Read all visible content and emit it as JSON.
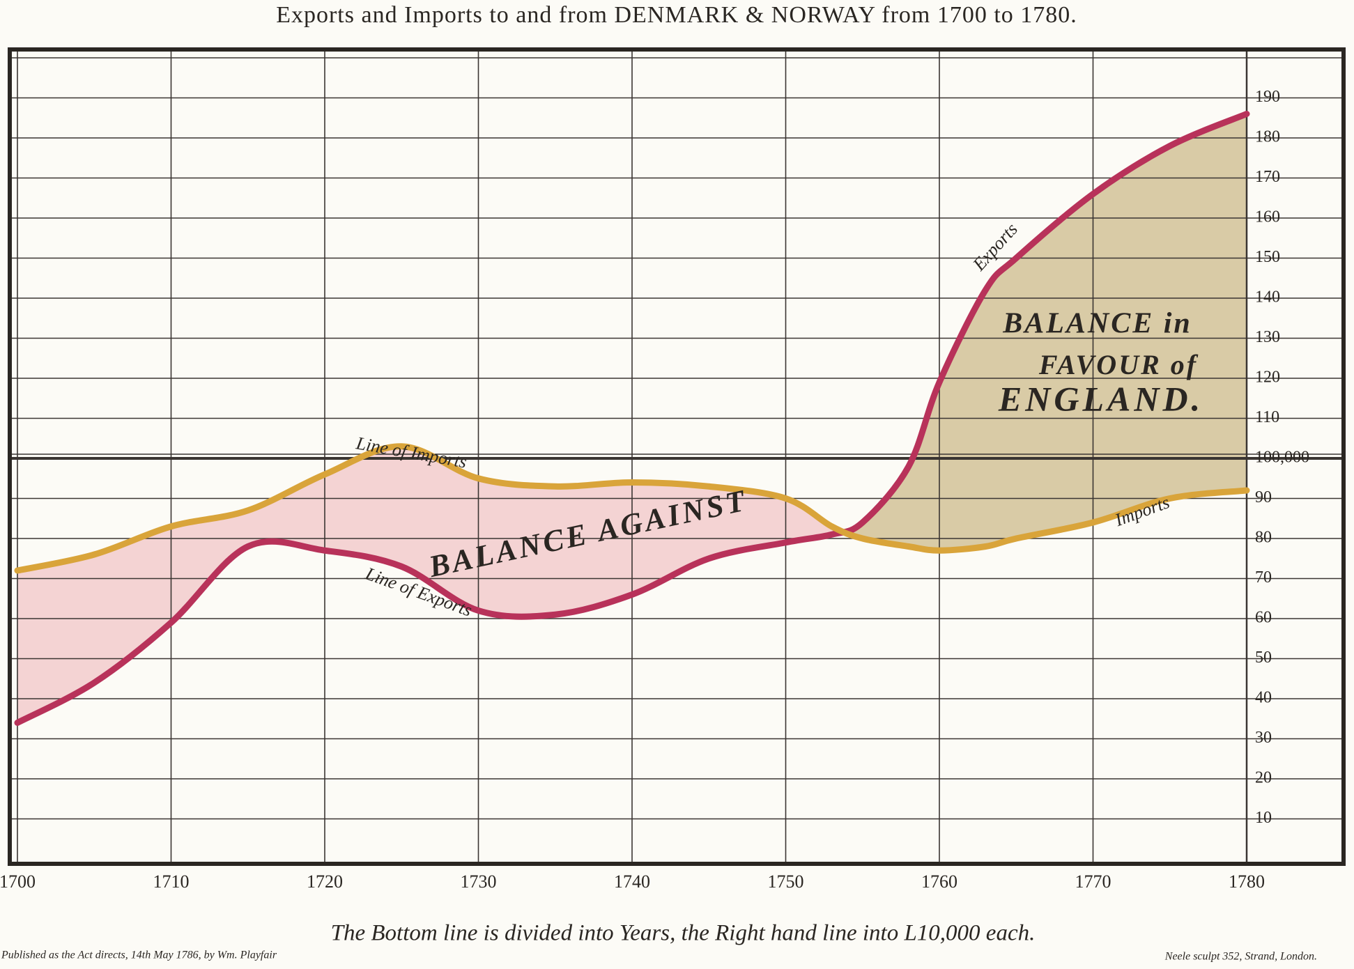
{
  "chart_data": {
    "type": "line",
    "title": "Exports and Imports to and from DENMARK & NORWAY from 1700 to 1780.",
    "x": [
      1700,
      1705,
      1710,
      1715,
      1720,
      1725,
      1730,
      1735,
      1740,
      1745,
      1750,
      1753,
      1755,
      1758,
      1760,
      1763,
      1765,
      1770,
      1775,
      1780
    ],
    "series": [
      {
        "name": "Exports",
        "color": "#b8325a",
        "values": [
          34,
          44,
          59,
          78,
          77,
          73,
          62,
          61,
          66,
          75,
          79,
          81,
          84,
          98,
          119,
          142,
          150,
          166,
          178,
          186
        ]
      },
      {
        "name": "Imports",
        "color": "#d9a43a",
        "values": [
          72,
          76,
          83,
          87,
          96,
          103,
          95,
          93,
          94,
          93,
          90,
          83,
          80,
          78,
          77,
          78,
          80,
          84,
          90,
          92
        ]
      }
    ],
    "fill_colors": {
      "against": "#f4d3d3",
      "favour": "#d9cba6"
    },
    "xlim": [
      1700,
      1780
    ],
    "xticks": [
      1700,
      1710,
      1720,
      1730,
      1740,
      1750,
      1760,
      1770,
      1780
    ],
    "ylim": [
      0,
      200
    ],
    "yticks": [
      10,
      20,
      30,
      40,
      50,
      60,
      70,
      80,
      90,
      {
        "value": 100,
        "label": "100,000"
      },
      110,
      120,
      130,
      140,
      150,
      160,
      170,
      180,
      190
    ],
    "grid": true,
    "annotations": [
      "Line of Imports",
      "Line of Exports",
      "BALANCE AGAINST",
      "BALANCE in",
      "FAVOUR of",
      "ENGLAND."
    ],
    "note": "The Bottom line is divided into Years, the Right hand line into L10,000 each.",
    "credits": [
      "Published as the Act directs, 14th May 1786, by Wm. Playfair",
      "Neele sculpt 352, Strand, London."
    ]
  }
}
